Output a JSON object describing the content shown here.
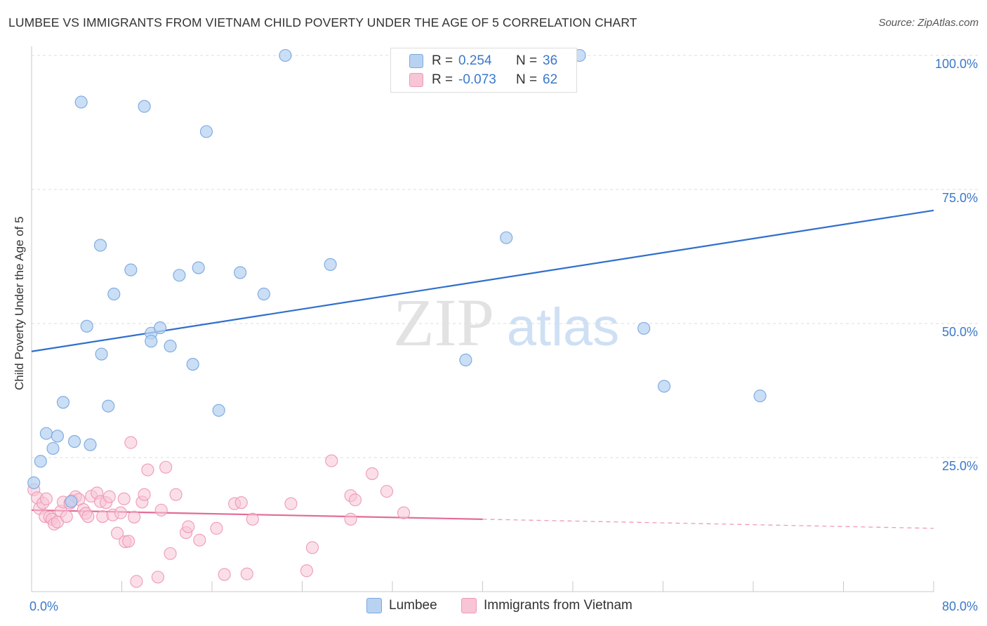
{
  "title": "LUMBEE VS IMMIGRANTS FROM VIETNAM CHILD POVERTY UNDER THE AGE OF 5 CORRELATION CHART",
  "source": "Source: ZipAtlas.com",
  "watermark": {
    "zip": "ZIP",
    "atlas": "atlas"
  },
  "legend": {
    "r_label": "R =",
    "n_label": "N =",
    "series": [
      {
        "r": "0.254",
        "n": "36"
      },
      {
        "r": "-0.073",
        "n": "62"
      }
    ]
  },
  "bottom_legend": [
    "Lumbee",
    "Immigrants from Vietnam"
  ],
  "colors": {
    "lumbee_fill": "#b8d3f2",
    "lumbee_stroke": "#7aa8df",
    "lumbee_line": "#2f6fcc",
    "viet_fill": "#f7c5d6",
    "viet_stroke": "#ee9ab7",
    "viet_line": "#e36b98",
    "tick_text": "#3a78c9"
  },
  "chart_data": {
    "type": "scatter",
    "title": "LUMBEE VS IMMIGRANTS FROM VIETNAM CHILD POVERTY UNDER THE AGE OF 5 CORRELATION CHART",
    "xlabel": "",
    "ylabel": "Child Poverty Under the Age of 5",
    "xlim": [
      0,
      80
    ],
    "ylim": [
      0,
      100
    ],
    "x_tick_labels": [
      "0.0%",
      "80.0%"
    ],
    "y_ticks": [
      25,
      50,
      75,
      100
    ],
    "y_tick_labels": [
      "25.0%",
      "50.0%",
      "75.0%",
      "100.0%"
    ],
    "grid": true,
    "series": [
      {
        "name": "Lumbee",
        "points": [
          [
            0.2,
            20.3
          ],
          [
            0.8,
            24.3
          ],
          [
            1.3,
            29.5
          ],
          [
            1.9,
            26.7
          ],
          [
            2.3,
            29
          ],
          [
            2.8,
            35.3
          ],
          [
            3.8,
            28
          ],
          [
            4.4,
            91.3
          ],
          [
            4.9,
            49.5
          ],
          [
            5.2,
            27.4
          ],
          [
            6.1,
            64.6
          ],
          [
            6.2,
            44.3
          ],
          [
            6.8,
            34.6
          ],
          [
            7.3,
            55.5
          ],
          [
            8.8,
            60
          ],
          [
            10,
            90.5
          ],
          [
            10.6,
            48.2
          ],
          [
            10.6,
            46.7
          ],
          [
            11.4,
            49.2
          ],
          [
            12.3,
            45.8
          ],
          [
            13.1,
            59
          ],
          [
            14.3,
            42.4
          ],
          [
            14.8,
            60.4
          ],
          [
            15.5,
            85.8
          ],
          [
            16.6,
            33.8
          ],
          [
            18.5,
            59.5
          ],
          [
            20.6,
            55.5
          ],
          [
            22.5,
            100
          ],
          [
            26.5,
            61
          ],
          [
            38.5,
            43.2
          ],
          [
            42.1,
            66
          ],
          [
            48.6,
            100
          ],
          [
            54.3,
            49.1
          ],
          [
            56.1,
            38.3
          ],
          [
            64.6,
            36.5
          ],
          [
            3.5,
            16.8
          ]
        ],
        "trend": {
          "x0": 0,
          "y0": 44.8,
          "x1": 80,
          "y1": 71.1
        }
      },
      {
        "name": "Immigrants from Vietnam",
        "points": [
          [
            0.2,
            19
          ],
          [
            0.5,
            17.5
          ],
          [
            0.7,
            15.5
          ],
          [
            1,
            16.5
          ],
          [
            1.2,
            14
          ],
          [
            1.3,
            17.3
          ],
          [
            1.6,
            13.9
          ],
          [
            1.8,
            13.5
          ],
          [
            2,
            12.6
          ],
          [
            2.3,
            13
          ],
          [
            2.6,
            15
          ],
          [
            2.8,
            16.7
          ],
          [
            3.1,
            14
          ],
          [
            3.4,
            16.5
          ],
          [
            3.6,
            17
          ],
          [
            3.9,
            17.7
          ],
          [
            4.2,
            17.2
          ],
          [
            4.6,
            15.3
          ],
          [
            4.8,
            14.6
          ],
          [
            5,
            14
          ],
          [
            5.3,
            17.8
          ],
          [
            5.8,
            18.4
          ],
          [
            6.1,
            16.8
          ],
          [
            6.3,
            14
          ],
          [
            6.6,
            16.6
          ],
          [
            6.9,
            17.7
          ],
          [
            7.2,
            14.3
          ],
          [
            7.6,
            10.9
          ],
          [
            7.9,
            14.7
          ],
          [
            8.2,
            17.3
          ],
          [
            8.3,
            9.3
          ],
          [
            8.6,
            9.4
          ],
          [
            8.8,
            27.8
          ],
          [
            9.1,
            13.9
          ],
          [
            9.3,
            1.9
          ],
          [
            9.8,
            16.7
          ],
          [
            10,
            18.1
          ],
          [
            10.3,
            22.7
          ],
          [
            11.2,
            2.7
          ],
          [
            11.5,
            15.2
          ],
          [
            11.9,
            23.2
          ],
          [
            12.3,
            7.1
          ],
          [
            12.8,
            18.1
          ],
          [
            13.7,
            11
          ],
          [
            13.9,
            12.1
          ],
          [
            14.9,
            9.6
          ],
          [
            16.4,
            11.8
          ],
          [
            17.1,
            3.2
          ],
          [
            18,
            16.4
          ],
          [
            18.6,
            16.6
          ],
          [
            19.1,
            3.3
          ],
          [
            19.6,
            13.5
          ],
          [
            23,
            16.4
          ],
          [
            24.4,
            3.9
          ],
          [
            24.9,
            8.2
          ],
          [
            26.6,
            24.4
          ],
          [
            28.3,
            17.9
          ],
          [
            28.3,
            13.5
          ],
          [
            28.7,
            17.1
          ],
          [
            30.2,
            22
          ],
          [
            31.5,
            18.7
          ],
          [
            33,
            14.7
          ]
        ],
        "trend": {
          "x0": 0,
          "y0": 15.2,
          "x1": 40,
          "y1": 13.5
        },
        "trend_dashed": {
          "x0": 40,
          "y0": 13.5,
          "x1": 80,
          "y1": 11.8
        }
      }
    ]
  }
}
